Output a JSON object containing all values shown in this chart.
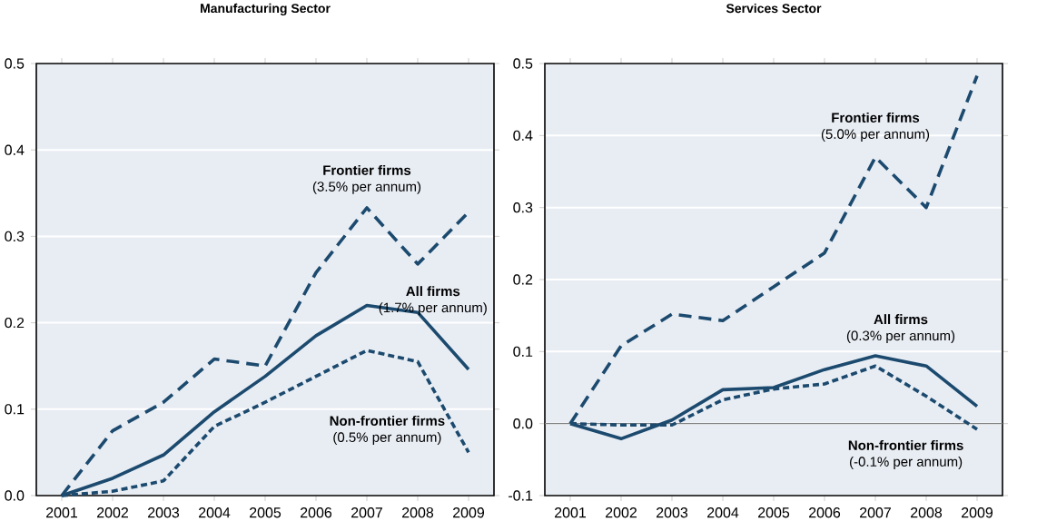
{
  "chart_data": [
    {
      "type": "line",
      "title": "Manufacturing Sector",
      "categories": [
        "2001",
        "2002",
        "2003",
        "2004",
        "2005",
        "2006",
        "2007",
        "2008",
        "2009"
      ],
      "series": [
        {
          "name": "Frontier firms",
          "color": "#1c4a6e",
          "line_style": "dashed",
          "values": [
            0,
            0.075,
            0.108,
            0.158,
            0.15,
            0.258,
            0.333,
            0.268,
            0.328
          ]
        },
        {
          "name": "All firms",
          "color": "#1c4a6e",
          "line_style": "solid",
          "values": [
            0,
            0.02,
            0.047,
            0.097,
            0.138,
            0.185,
            0.22,
            0.212,
            0.146
          ]
        },
        {
          "name": "Non-frontier firms",
          "color": "#1c4a6e",
          "line_style": "dotted",
          "values": [
            0,
            0.005,
            0.017,
            0.08,
            0.108,
            0.138,
            0.168,
            0.155,
            0.05
          ]
        }
      ],
      "annotations": [
        "(3.5% per annum)",
        "(1.7% per annum)",
        "(0.5% per annum)"
      ],
      "ylim": [
        0,
        0.5
      ],
      "yticks": [
        {
          "value": 0,
          "label": "0.0"
        },
        {
          "value": 0.1,
          "label": "0.1"
        },
        {
          "value": 0.2,
          "label": "0.2"
        },
        {
          "value": 0.3,
          "label": "0.3"
        },
        {
          "value": 0.4,
          "label": "0.4"
        },
        {
          "value": 0.5,
          "label": "0.5"
        }
      ],
      "grid": "y",
      "marker": "none"
    },
    {
      "type": "line",
      "title": "Services Sector",
      "categories": [
        "2001",
        "2002",
        "2003",
        "2004",
        "2005",
        "2006",
        "2007",
        "2008",
        "2009"
      ],
      "series": [
        {
          "name": "Frontier firms",
          "color": "#1c4a6e",
          "line_style": "dashed",
          "values": [
            0,
            0.108,
            0.152,
            0.143,
            0.19,
            0.237,
            0.37,
            0.3,
            0.483
          ]
        },
        {
          "name": "All firms",
          "color": "#1c4a6e",
          "line_style": "solid",
          "values": [
            0,
            -0.021,
            0.005,
            0.047,
            0.05,
            0.075,
            0.094,
            0.08,
            0.024
          ]
        },
        {
          "name": "Non-frontier firms",
          "color": "#1c4a6e",
          "line_style": "dotted",
          "values": [
            0,
            -0.002,
            -0.002,
            0.033,
            0.048,
            0.055,
            0.08,
            0.038,
            -0.008
          ]
        }
      ],
      "annotations": [
        "(5.0% per annum)",
        "(0.3% per annum)",
        "(-0.1% per annum)"
      ],
      "ylim": [
        -0.1,
        0.5
      ],
      "yticks": [
        {
          "value": -0.1,
          "label": "-0.1"
        },
        {
          "value": 0,
          "label": "0.0"
        },
        {
          "value": 0.1,
          "label": "0.1"
        },
        {
          "value": 0.2,
          "label": "0.2"
        },
        {
          "value": 0.3,
          "label": "0.3"
        },
        {
          "value": 0.4,
          "label": "0.4"
        },
        {
          "value": 0.5,
          "label": "0.5"
        }
      ],
      "grid": "y",
      "marker": "none"
    }
  ]
}
